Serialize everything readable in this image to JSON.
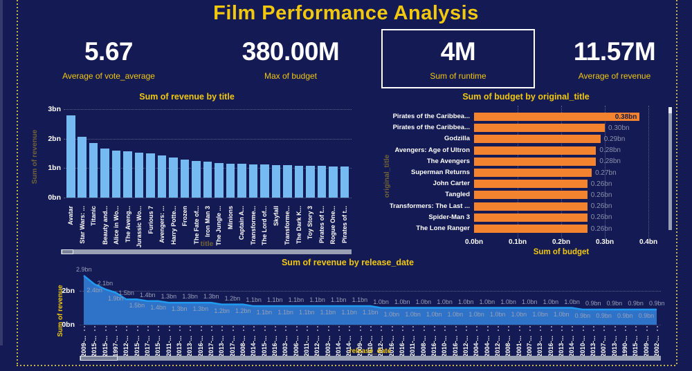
{
  "page": {
    "title": "Film Performance Analysis",
    "background": "#131A54",
    "accent": "#F2C80F",
    "dash_border_color": "#C9B843"
  },
  "kpis": [
    {
      "value": "5.67",
      "label": "Average of vote_average",
      "selected": false
    },
    {
      "value": "380.00M",
      "label": "Max of budget",
      "selected": false
    },
    {
      "value": "4M",
      "label": "Sum of runtime",
      "selected": true
    },
    {
      "value": "11.57M",
      "label": "Average of revenue",
      "selected": false
    }
  ],
  "chart_data": [
    {
      "type": "bar",
      "orientation": "vertical",
      "title": "Sum of revenue by title",
      "xlabel": "title",
      "ylabel": "Sum of revenue",
      "unit": "bn",
      "ylim": [
        0,
        3
      ],
      "yticks": [
        "0bn",
        "1bn",
        "2bn",
        "3bn"
      ],
      "grid": true,
      "bar_color": "#75BBF2",
      "categories": [
        "Avatar",
        "Star Wars: ...",
        "Titanic",
        "Beauty and...",
        "Alice in Wo...",
        "The Aveng...",
        "Jurassic Wo...",
        "Furious 7",
        "Avengers: ...",
        "Harry Potte...",
        "Frozen",
        "The Fate of...",
        "Iron Man 3",
        "The Jungle ...",
        "Minions",
        "Captain A...",
        "Transforme...",
        "The Lord of...",
        "Skyfall",
        "Transforme...",
        "The Dark K...",
        "Toy Story 3",
        "Pirates of t...",
        "Rogue One...",
        "Pirates of t..."
      ],
      "values": [
        2.79,
        2.07,
        1.85,
        1.66,
        1.6,
        1.57,
        1.52,
        1.51,
        1.42,
        1.35,
        1.28,
        1.24,
        1.22,
        1.17,
        1.16,
        1.15,
        1.12,
        1.12,
        1.11,
        1.1,
        1.08,
        1.07,
        1.07,
        1.06,
        1.05
      ]
    },
    {
      "type": "bar",
      "orientation": "horizontal",
      "title": "Sum of budget by original_title",
      "xlabel": "Sum of budget",
      "ylabel": "original_title",
      "unit": "bn",
      "xlim": [
        0,
        0.4
      ],
      "xticks": [
        "0.0bn",
        "0.1bn",
        "0.2bn",
        "0.3bn",
        "0.4bn"
      ],
      "grid": true,
      "bar_color": "#F3832F",
      "inside_label_color": "#131A46",
      "label_color": "#8C93AC",
      "categories": [
        "Pirates of the Caribbea...",
        "Pirates of the Caribbea...",
        "Godzilla",
        "Avengers: Age of Ultron",
        "The Avengers",
        "Superman Returns",
        "John Carter",
        "Tangled",
        "Transformers: The Last ...",
        "Spider-Man 3",
        "The Lone Ranger"
      ],
      "values": [
        0.38,
        0.3,
        0.29,
        0.28,
        0.28,
        0.27,
        0.26,
        0.26,
        0.26,
        0.26,
        0.26
      ]
    },
    {
      "type": "area",
      "title": "Sum of revenue by release_date",
      "xlabel": "release_date",
      "ylabel": "Sum of revenue",
      "unit": "bn",
      "ylim": [
        0,
        3
      ],
      "yticks": [
        "0bn",
        "2bn"
      ],
      "grid": true,
      "line_color": "#1F9BEF",
      "fill_color": "#2E73C8",
      "label_color": "#99A1B8",
      "categories": [
        "2009-...",
        "2015-...",
        "2015-...",
        "1997-...",
        "2012-...",
        "2015-...",
        "2017-...",
        "2015-...",
        "2011-...",
        "2013-...",
        "2013-...",
        "2016-...",
        "2017-...",
        "2013-...",
        "2017-...",
        "2008-...",
        "2014-...",
        "2015-...",
        "2016-...",
        "2003-...",
        "2006-...",
        "2011-...",
        "2012-...",
        "2003-...",
        "2014-...",
        "2014-...",
        "2009-...",
        "2010-...",
        "2012-...",
        "2016-...",
        "2016-...",
        "2011-...",
        "2008-...",
        "2016-...",
        "2010-...",
        "2016-...",
        "2012-...",
        "2004-...",
        "2004-...",
        "2012-...",
        "2008-...",
        "2001-...",
        "2007-...",
        "2013-...",
        "2016-...",
        "2013-...",
        "2014-...",
        "2010-...",
        "2013-...",
        "2007-...",
        "2013-...",
        "1990-...",
        "2015-...",
        "2009-...",
        "2002-..."
      ],
      "values": [
        2.9,
        2.4,
        2.1,
        1.9,
        1.5,
        1.5,
        1.4,
        1.4,
        1.3,
        1.3,
        1.3,
        1.3,
        1.3,
        1.2,
        1.2,
        1.2,
        1.1,
        1.1,
        1.1,
        1.1,
        1.1,
        1.1,
        1.1,
        1.1,
        1.1,
        1.1,
        1.1,
        1.1,
        1.0,
        1.0,
        1.0,
        1.0,
        1.0,
        1.0,
        1.0,
        1.0,
        1.0,
        1.0,
        1.0,
        1.0,
        1.0,
        1.0,
        1.0,
        1.0,
        1.0,
        1.0,
        1.0,
        0.9,
        0.9,
        0.9,
        0.9,
        0.9,
        0.9,
        0.9,
        0.9
      ]
    }
  ]
}
